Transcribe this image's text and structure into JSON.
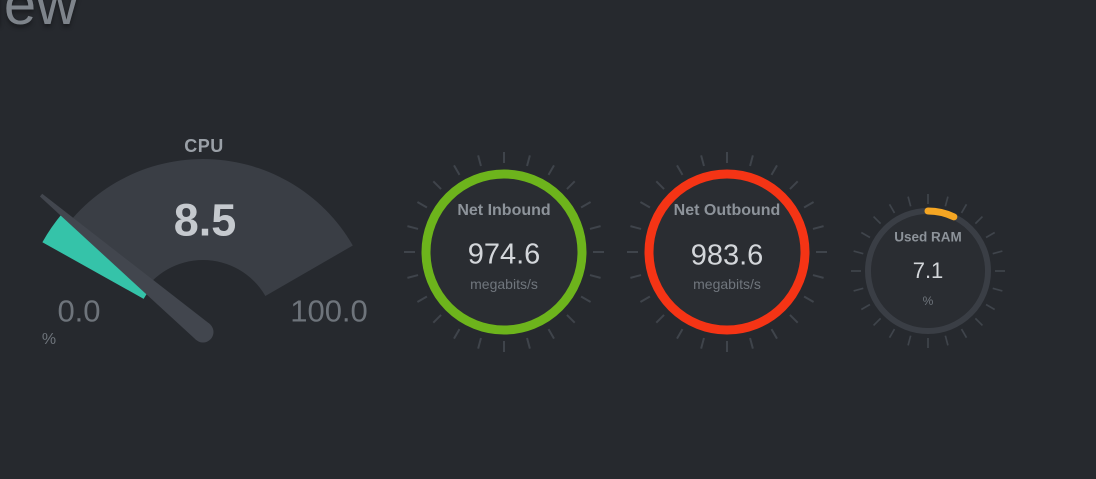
{
  "page": {
    "heading_fragment": "iew",
    "background_color": "#26292e",
    "tick_color": "#3f444b",
    "interior_color": "#2a2d32"
  },
  "cpu_gauge": {
    "title": "CPU",
    "value": "8.5",
    "value_percent": 8.5,
    "min_label": "0.0",
    "max_label": "100.0",
    "unit": "%",
    "fill_color": "#35c3a9",
    "fan_color": "#3a3e45",
    "needle_color": "#42464e"
  },
  "net_inbound_gauge": {
    "title": "Net Inbound",
    "value": "974.6",
    "unit": "megabits/s",
    "ring_color": "#6db41c"
  },
  "net_outbound_gauge": {
    "title": "Net Outbound",
    "value": "983.6",
    "unit": "megabits/s",
    "ring_color": "#f53415"
  },
  "used_ram_gauge": {
    "title": "Used RAM",
    "value": "7.1",
    "value_percent": 7.1,
    "unit": "%",
    "arc_color": "#f5a623",
    "track_color": "#3a3e45"
  },
  "chart_data": [
    {
      "type": "gauge",
      "title": "CPU",
      "value": 8.5,
      "min": 0.0,
      "max": 100.0,
      "unit": "%"
    },
    {
      "type": "gauge",
      "title": "Net Inbound",
      "value": 974.6,
      "unit": "megabits/s"
    },
    {
      "type": "gauge",
      "title": "Net Outbound",
      "value": 983.6,
      "unit": "megabits/s"
    },
    {
      "type": "gauge",
      "title": "Used RAM",
      "value": 7.1,
      "min": 0,
      "max": 100,
      "unit": "%"
    }
  ]
}
